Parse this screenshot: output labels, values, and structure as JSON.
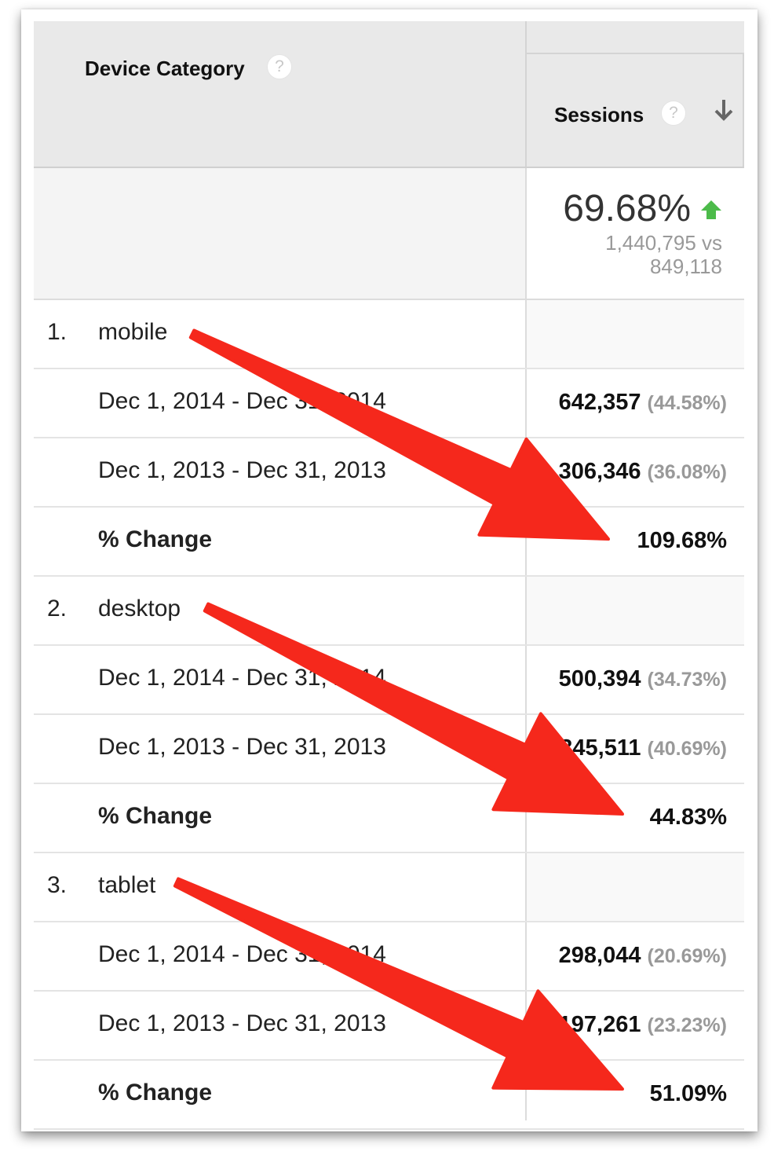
{
  "header": {
    "dimension_label": "Device Category",
    "metric_label": "Sessions",
    "help_icon": "question-circle-icon",
    "sort_icon": "arrow-down-icon"
  },
  "summary": {
    "change": "69.68%",
    "trend_icon": "arrow-up-icon",
    "trend_color": "#4cbb4a",
    "current_total": "1,440,795 vs",
    "previous_total": "849,118"
  },
  "colors": {
    "annotation_arrow": "#f5281c"
  },
  "devices": [
    {
      "rank": "1.",
      "name": "mobile",
      "periods": [
        {
          "label": "Dec 1, 2014 - Dec 31, 2014",
          "value": "642,357",
          "share": "(44.58%)"
        },
        {
          "label": "Dec 1, 2013 - Dec 31, 2013",
          "value": "306,346",
          "share": "(36.08%)"
        }
      ],
      "change_label": "% Change",
      "change": "109.68%"
    },
    {
      "rank": "2.",
      "name": "desktop",
      "periods": [
        {
          "label": "Dec 1, 2014 - Dec 31, 2014",
          "value": "500,394",
          "share": "(34.73%)"
        },
        {
          "label": "Dec 1, 2013 - Dec 31, 2013",
          "value": "345,511",
          "share": "(40.69%)"
        }
      ],
      "change_label": "% Change",
      "change": "44.83%"
    },
    {
      "rank": "3.",
      "name": "tablet",
      "periods": [
        {
          "label": "Dec 1, 2014 - Dec 31, 2014",
          "value": "298,044",
          "share": "(20.69%)"
        },
        {
          "label": "Dec 1, 2013 - Dec 31, 2013",
          "value": "197,261",
          "share": "(23.23%)"
        }
      ],
      "change_label": "% Change",
      "change": "51.09%"
    }
  ]
}
